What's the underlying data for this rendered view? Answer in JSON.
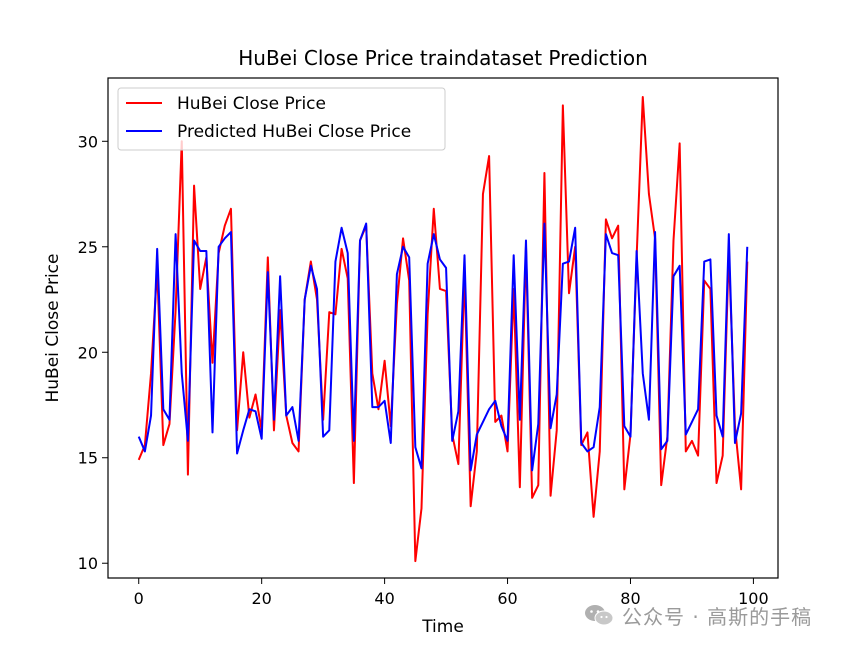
{
  "chart_data": {
    "type": "line",
    "title": "HuBei Close Price traindataset Prediction",
    "xlabel": "Time",
    "ylabel": "HuBei Close Price",
    "xlim": [
      -5,
      104
    ],
    "ylim": [
      9.3,
      33.0
    ],
    "xticks": [
      0,
      20,
      40,
      60,
      80,
      100
    ],
    "yticks": [
      10,
      15,
      20,
      25,
      30
    ],
    "grid": false,
    "legend_position": "upper-left",
    "x": [
      0,
      1,
      2,
      3,
      4,
      5,
      6,
      7,
      8,
      9,
      10,
      11,
      12,
      13,
      14,
      15,
      16,
      17,
      18,
      19,
      20,
      21,
      22,
      23,
      24,
      25,
      26,
      27,
      28,
      29,
      30,
      31,
      32,
      33,
      34,
      35,
      36,
      37,
      38,
      39,
      40,
      41,
      42,
      43,
      44,
      45,
      46,
      47,
      48,
      49,
      50,
      51,
      52,
      53,
      54,
      55,
      56,
      57,
      58,
      59,
      60,
      61,
      62,
      63,
      64,
      65,
      66,
      67,
      68,
      69,
      70,
      71,
      72,
      73,
      74,
      75,
      76,
      77,
      78,
      79,
      80,
      81,
      82,
      83,
      84,
      85,
      86,
      87,
      88,
      89,
      90,
      91,
      92,
      93,
      94,
      95,
      96,
      97,
      98,
      99
    ],
    "series": [
      {
        "name": "HuBei Close Price",
        "color": "#ff0000",
        "values": [
          14.9,
          15.6,
          19.0,
          24.0,
          15.6,
          16.6,
          22.0,
          30.0,
          14.2,
          27.9,
          23.0,
          24.5,
          19.5,
          24.7,
          26.0,
          26.8,
          16.3,
          20.0,
          16.9,
          18.0,
          16.3,
          24.5,
          16.3,
          22.0,
          17.0,
          15.7,
          15.3,
          22.5,
          24.3,
          22.5,
          16.8,
          21.9,
          21.8,
          24.9,
          23.5,
          13.8,
          25.3,
          26.0,
          19.0,
          17.3,
          19.6,
          16.5,
          22.3,
          25.4,
          23.4,
          10.1,
          12.6,
          21.8,
          26.8,
          23.0,
          22.9,
          16.1,
          14.7,
          23.8,
          12.7,
          15.3,
          27.5,
          29.3,
          16.7,
          17.0,
          15.3,
          23.0,
          13.6,
          25.0,
          13.1,
          13.7,
          28.5,
          13.2,
          16.3,
          31.7,
          22.8,
          25.0,
          15.6,
          16.2,
          12.2,
          15.3,
          26.3,
          25.4,
          26.0,
          13.5,
          16.1,
          24.5,
          32.1,
          27.5,
          25.4,
          13.7,
          16.0,
          25.3,
          29.9,
          15.3,
          15.8,
          15.1,
          23.4,
          23.0,
          13.8,
          15.1,
          24.8,
          16.5,
          13.5,
          24.3
        ]
      },
      {
        "name": "Predicted HuBei Close Price",
        "color": "#0000ff",
        "values": [
          16.0,
          15.3,
          17.0,
          24.9,
          17.3,
          16.8,
          25.6,
          19.0,
          15.8,
          25.3,
          24.8,
          24.8,
          16.2,
          25.0,
          25.4,
          25.7,
          15.2,
          16.3,
          17.3,
          17.2,
          15.9,
          23.8,
          16.8,
          23.6,
          17.0,
          17.4,
          15.8,
          22.5,
          24.1,
          23.0,
          16.0,
          16.3,
          24.3,
          25.9,
          24.7,
          15.8,
          25.3,
          26.1,
          17.4,
          17.4,
          17.7,
          15.7,
          23.7,
          25.0,
          24.5,
          15.5,
          14.5,
          24.2,
          25.6,
          24.4,
          24.0,
          15.8,
          17.2,
          24.6,
          14.4,
          16.1,
          16.7,
          17.3,
          17.7,
          16.5,
          15.8,
          24.6,
          16.8,
          25.3,
          14.4,
          16.6,
          26.1,
          16.4,
          18.0,
          24.2,
          24.3,
          25.9,
          15.7,
          15.3,
          15.5,
          17.4,
          25.6,
          24.7,
          24.6,
          16.5,
          16.0,
          24.8,
          19.0,
          16.8,
          25.7,
          15.4,
          15.8,
          23.6,
          24.1,
          16.1,
          16.7,
          17.3,
          24.3,
          24.4,
          17.0,
          16.0,
          25.6,
          15.7,
          17.1,
          25.0
        ]
      }
    ]
  },
  "watermark": {
    "text": "公众号 · 高斯的手稿",
    "icon": "wechat-icon",
    "color": "#9a9a9a"
  }
}
